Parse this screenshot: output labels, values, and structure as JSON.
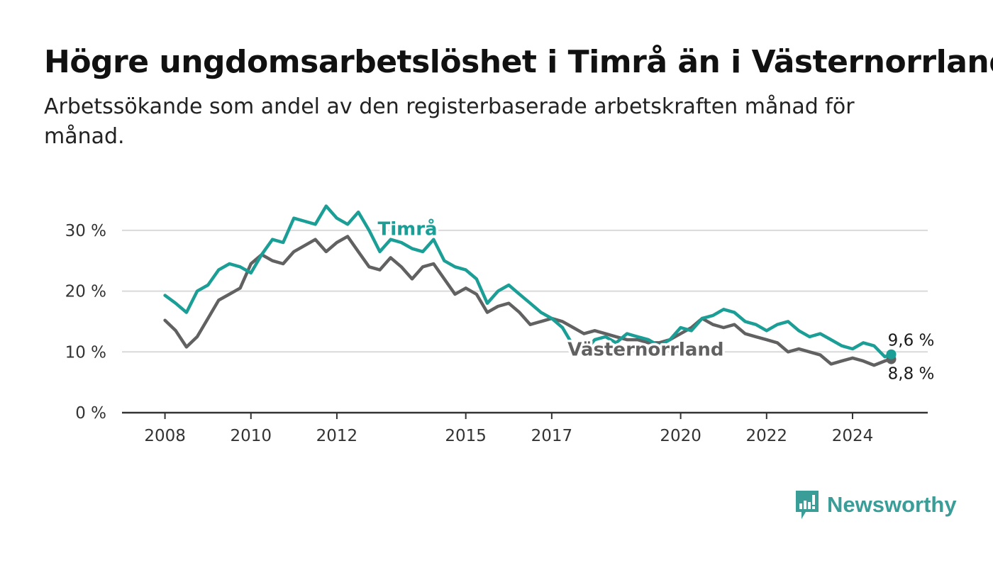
{
  "header": {
    "title": "Högre ungdomsarbetslöshet i Timrå än i Västernorrland",
    "subtitle": "Arbetssökande som andel av den registerbaserade arbetskraften månad för månad."
  },
  "brand": {
    "name": "Newsworthy",
    "icon": "newsworthy-logo-icon",
    "color": "#3a9d97"
  },
  "chart_data": {
    "type": "line",
    "title": "Högre ungdomsarbetslöshet i Timrå än i Västernorrland",
    "subtitle": "Arbetssökande som andel av den registerbaserade arbetskraften månad för månad.",
    "x_unit": "year",
    "xlim": [
      2007.0,
      2025.75
    ],
    "ylim": [
      0,
      35
    ],
    "y_ticks": [
      {
        "value": 0,
        "label": "0 %"
      },
      {
        "value": 10,
        "label": "10 %"
      },
      {
        "value": 20,
        "label": "20 %"
      },
      {
        "value": 30,
        "label": "30 %"
      }
    ],
    "x_ticks": [
      {
        "value": 2008,
        "label": "2008"
      },
      {
        "value": 2010,
        "label": "2010"
      },
      {
        "value": 2012,
        "label": "2012"
      },
      {
        "value": 2015,
        "label": "2015"
      },
      {
        "value": 2017,
        "label": "2017"
      },
      {
        "value": 2020,
        "label": "2020"
      },
      {
        "value": 2022,
        "label": "2022"
      },
      {
        "value": 2024,
        "label": "2024"
      }
    ],
    "grid": true,
    "legend": "inline labels",
    "series": [
      {
        "name": "Timrå",
        "color": "#1a9e96",
        "end_label": "9,6 %",
        "x": [
          2008.0,
          2008.25,
          2008.5,
          2008.75,
          2009.0,
          2009.25,
          2009.5,
          2009.75,
          2010.0,
          2010.25,
          2010.5,
          2010.75,
          2011.0,
          2011.25,
          2011.5,
          2011.75,
          2012.0,
          2012.25,
          2012.5,
          2012.75,
          2013.0,
          2013.25,
          2013.5,
          2013.75,
          2014.0,
          2014.25,
          2014.5,
          2014.75,
          2015.0,
          2015.25,
          2015.5,
          2015.75,
          2016.0,
          2016.25,
          2016.5,
          2016.75,
          2017.0,
          2017.25,
          2017.5,
          2017.75,
          2018.0,
          2018.25,
          2018.5,
          2018.75,
          2019.0,
          2019.25,
          2019.5,
          2019.75,
          2020.0,
          2020.25,
          2020.5,
          2020.75,
          2021.0,
          2021.25,
          2021.5,
          2021.75,
          2022.0,
          2022.25,
          2022.5,
          2022.75,
          2023.0,
          2023.25,
          2023.5,
          2023.75,
          2024.0,
          2024.25,
          2024.5,
          2024.75,
          2024.9
        ],
        "y": [
          19.3,
          18.0,
          16.5,
          20.0,
          21.0,
          23.5,
          24.5,
          24.0,
          23.0,
          26.0,
          28.5,
          28.0,
          32.0,
          31.5,
          31.0,
          34.0,
          32.0,
          31.0,
          33.0,
          30.0,
          26.5,
          28.5,
          28.0,
          27.0,
          26.5,
          28.5,
          25.0,
          24.0,
          23.5,
          22.0,
          18.0,
          20.0,
          21.0,
          19.5,
          18.0,
          16.5,
          15.5,
          14.0,
          11.0,
          10.0,
          12.0,
          12.5,
          11.5,
          13.0,
          12.5,
          12.0,
          11.0,
          12.0,
          14.0,
          13.5,
          15.5,
          16.0,
          17.0,
          16.5,
          15.0,
          14.5,
          13.5,
          14.5,
          15.0,
          13.5,
          12.5,
          13.0,
          12.0,
          11.0,
          10.5,
          11.5,
          11.0,
          9.2,
          9.6
        ]
      },
      {
        "name": "Västernorrland",
        "color": "#616161",
        "end_label": "8,8 %",
        "x": [
          2008.0,
          2008.25,
          2008.5,
          2008.75,
          2009.0,
          2009.25,
          2009.5,
          2009.75,
          2010.0,
          2010.25,
          2010.5,
          2010.75,
          2011.0,
          2011.25,
          2011.5,
          2011.75,
          2012.0,
          2012.25,
          2012.5,
          2012.75,
          2013.0,
          2013.25,
          2013.5,
          2013.75,
          2014.0,
          2014.25,
          2014.5,
          2014.75,
          2015.0,
          2015.25,
          2015.5,
          2015.75,
          2016.0,
          2016.25,
          2016.5,
          2016.75,
          2017.0,
          2017.25,
          2017.5,
          2017.75,
          2018.0,
          2018.25,
          2018.5,
          2018.75,
          2019.0,
          2019.25,
          2019.5,
          2019.75,
          2020.0,
          2020.25,
          2020.5,
          2020.75,
          2021.0,
          2021.25,
          2021.5,
          2021.75,
          2022.0,
          2022.25,
          2022.5,
          2022.75,
          2023.0,
          2023.25,
          2023.5,
          2023.75,
          2024.0,
          2024.25,
          2024.5,
          2024.75,
          2024.9
        ],
        "y": [
          15.2,
          13.5,
          10.8,
          12.5,
          15.5,
          18.5,
          19.5,
          20.5,
          24.5,
          26.0,
          25.0,
          24.5,
          26.5,
          27.5,
          28.5,
          26.5,
          28.0,
          29.0,
          26.5,
          24.0,
          23.5,
          25.5,
          24.0,
          22.0,
          24.0,
          24.5,
          22.0,
          19.5,
          20.5,
          19.5,
          16.5,
          17.5,
          18.0,
          16.5,
          14.5,
          15.0,
          15.5,
          15.0,
          14.0,
          13.0,
          13.5,
          13.0,
          12.5,
          12.0,
          12.0,
          11.5,
          11.5,
          12.0,
          13.0,
          14.0,
          15.5,
          14.5,
          14.0,
          14.5,
          13.0,
          12.5,
          12.0,
          11.5,
          10.0,
          10.5,
          10.0,
          9.5,
          8.0,
          8.5,
          9.0,
          8.5,
          7.8,
          8.5,
          8.8
        ]
      }
    ]
  }
}
